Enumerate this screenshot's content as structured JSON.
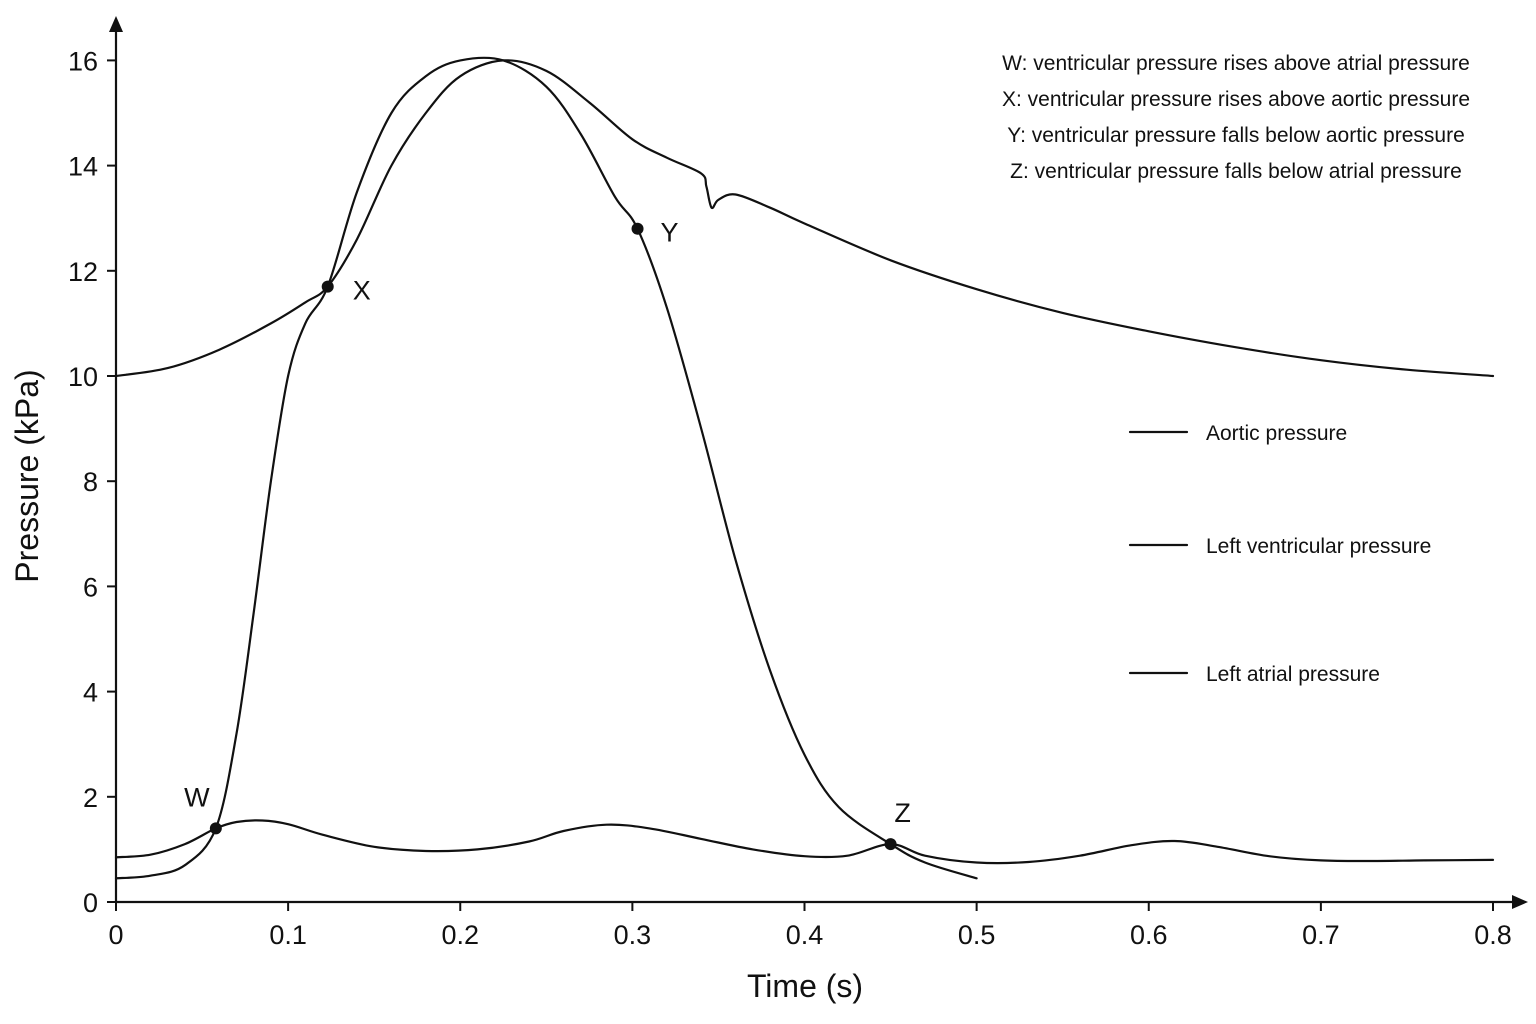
{
  "chart_data": {
    "type": "line",
    "xlabel": "Time (s)",
    "ylabel": "Pressure (kPa)",
    "xlim": [
      0,
      0.81
    ],
    "ylim": [
      0,
      16.8
    ],
    "x_ticks": [
      "0",
      "0.1",
      "0.2",
      "0.3",
      "0.4",
      "0.5",
      "0.6",
      "0.7",
      "0.8"
    ],
    "y_ticks": [
      "0",
      "2",
      "4",
      "6",
      "8",
      "10",
      "12",
      "14",
      "16"
    ],
    "grid": false,
    "legend_position": "right",
    "series": [
      {
        "name": "Aortic pressure",
        "x": [
          0,
          0.03,
          0.06,
          0.09,
          0.11,
          0.123,
          0.14,
          0.16,
          0.18,
          0.2,
          0.225,
          0.25,
          0.275,
          0.3,
          0.32,
          0.34,
          0.343,
          0.346,
          0.35,
          0.36,
          0.38,
          0.4,
          0.45,
          0.5,
          0.55,
          0.6,
          0.65,
          0.7,
          0.75,
          0.8
        ],
        "y": [
          10.0,
          10.15,
          10.5,
          11.0,
          11.4,
          11.7,
          12.6,
          14.0,
          15.0,
          15.7,
          16.0,
          15.8,
          15.2,
          14.5,
          14.15,
          13.85,
          13.6,
          13.2,
          13.35,
          13.45,
          13.2,
          12.9,
          12.2,
          11.65,
          11.2,
          10.85,
          10.55,
          10.3,
          10.12,
          10.0
        ]
      },
      {
        "name": "Left ventricular pressure",
        "x": [
          0,
          0.02,
          0.04,
          0.058,
          0.07,
          0.08,
          0.09,
          0.1,
          0.11,
          0.123,
          0.14,
          0.16,
          0.18,
          0.2,
          0.225,
          0.25,
          0.27,
          0.29,
          0.303,
          0.32,
          0.34,
          0.36,
          0.38,
          0.4,
          0.42,
          0.45,
          0.47,
          0.5
        ],
        "y": [
          0.45,
          0.5,
          0.7,
          1.4,
          3.2,
          5.5,
          8.0,
          10.0,
          11.0,
          11.7,
          13.5,
          15.0,
          15.7,
          16.0,
          16.0,
          15.5,
          14.6,
          13.4,
          12.8,
          11.3,
          9.0,
          6.5,
          4.4,
          2.8,
          1.8,
          1.1,
          0.75,
          0.45
        ]
      },
      {
        "name": "Left atrial pressure",
        "x": [
          0,
          0.02,
          0.04,
          0.058,
          0.07,
          0.085,
          0.1,
          0.12,
          0.15,
          0.18,
          0.21,
          0.24,
          0.26,
          0.285,
          0.31,
          0.34,
          0.37,
          0.4,
          0.425,
          0.45,
          0.47,
          0.5,
          0.53,
          0.56,
          0.59,
          0.615,
          0.64,
          0.67,
          0.7,
          0.73,
          0.76,
          0.8
        ],
        "y": [
          0.85,
          0.9,
          1.1,
          1.4,
          1.52,
          1.55,
          1.48,
          1.28,
          1.05,
          0.97,
          1.0,
          1.15,
          1.35,
          1.47,
          1.4,
          1.2,
          1.0,
          0.87,
          0.88,
          1.1,
          0.88,
          0.75,
          0.76,
          0.88,
          1.08,
          1.16,
          1.05,
          0.87,
          0.79,
          0.78,
          0.79,
          0.8
        ]
      }
    ],
    "points": [
      {
        "label": "W",
        "x": 0.058,
        "y": 1.4
      },
      {
        "label": "X",
        "x": 0.123,
        "y": 11.7
      },
      {
        "label": "Y",
        "x": 0.303,
        "y": 12.8
      },
      {
        "label": "Z",
        "x": 0.45,
        "y": 1.1
      }
    ],
    "annotations": [
      "W: ventricular pressure rises above atrial pressure",
      "X: ventricular pressure rises above aortic pressure",
      "Y: ventricular pressure falls below aortic pressure",
      "Z: ventricular pressure falls below atrial pressure"
    ],
    "colors": {
      "line": "#111111",
      "background": "#ffffff"
    }
  }
}
